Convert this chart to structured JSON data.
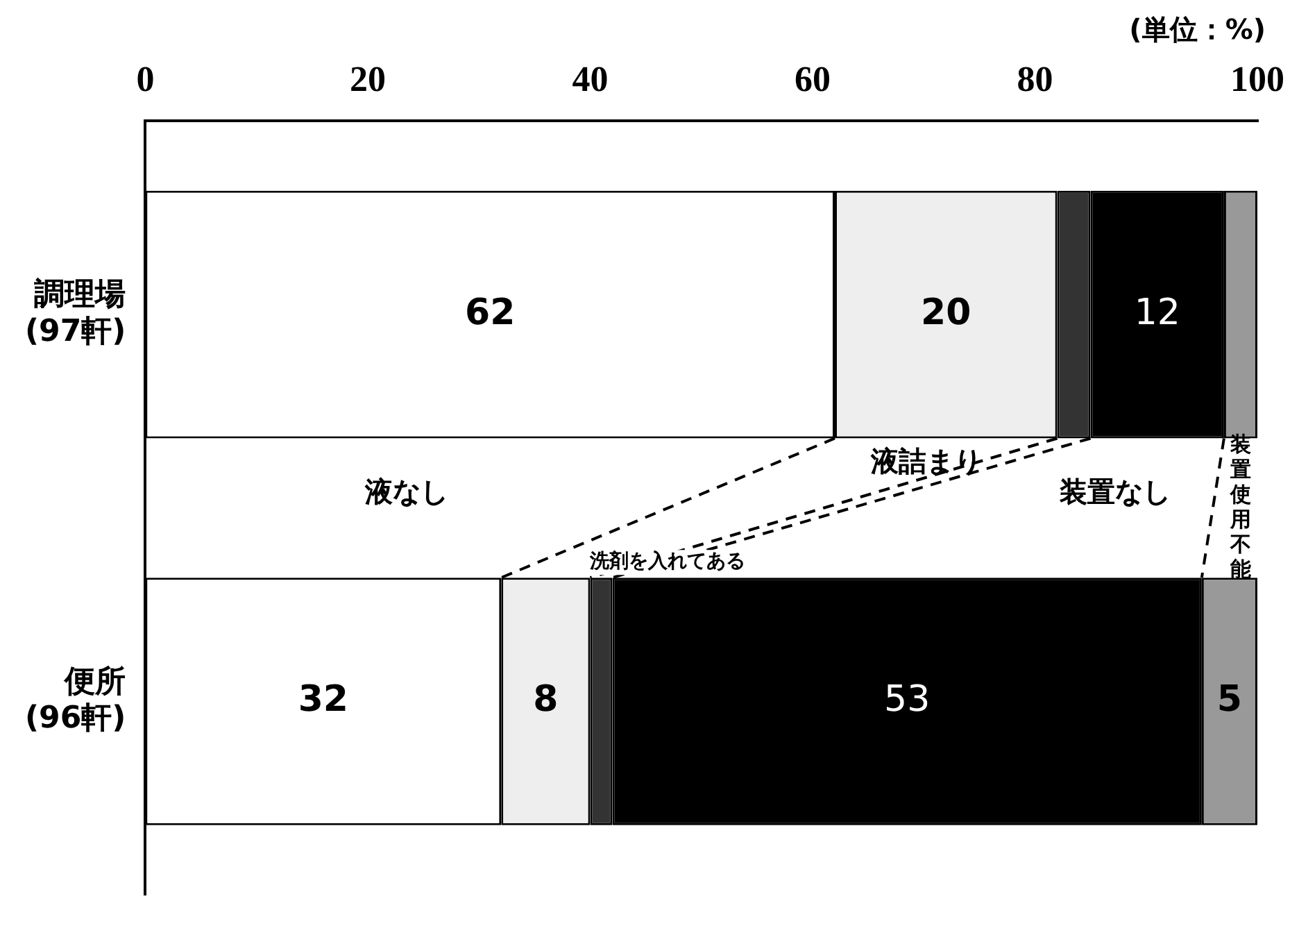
{
  "chart_data": {
    "type": "bar",
    "orientation": "horizontal",
    "stacked": true,
    "categories": [
      "調理場\n(97軒)",
      "便所\n(96軒)"
    ],
    "series": [
      {
        "name": "液なし",
        "color": "#ffffff",
        "values": [
          62,
          32
        ],
        "value_labels": [
          "62",
          "32"
        ]
      },
      {
        "name": "液詰まり",
        "color": "#eeeeee",
        "values": [
          20,
          8
        ],
        "value_labels": [
          "20",
          "8"
        ]
      },
      {
        "name": "洗剤を入れてある",
        "color": "#333333",
        "values": [
          3,
          2
        ],
        "value_labels": [
          null,
          null
        ]
      },
      {
        "name": "装置なし",
        "color": "#000000",
        "values": [
          12,
          53
        ],
        "value_labels": [
          "12",
          "53"
        ]
      },
      {
        "name": "装置使用不能",
        "color": "#999999",
        "values": [
          3,
          5
        ],
        "value_labels": [
          null,
          "5"
        ]
      }
    ],
    "xlim": [
      0,
      100
    ],
    "xticks": [
      0,
      20,
      40,
      60,
      80,
      100
    ],
    "grid": false,
    "legend": false,
    "annotations": [
      "(単位：%)"
    ]
  }
}
